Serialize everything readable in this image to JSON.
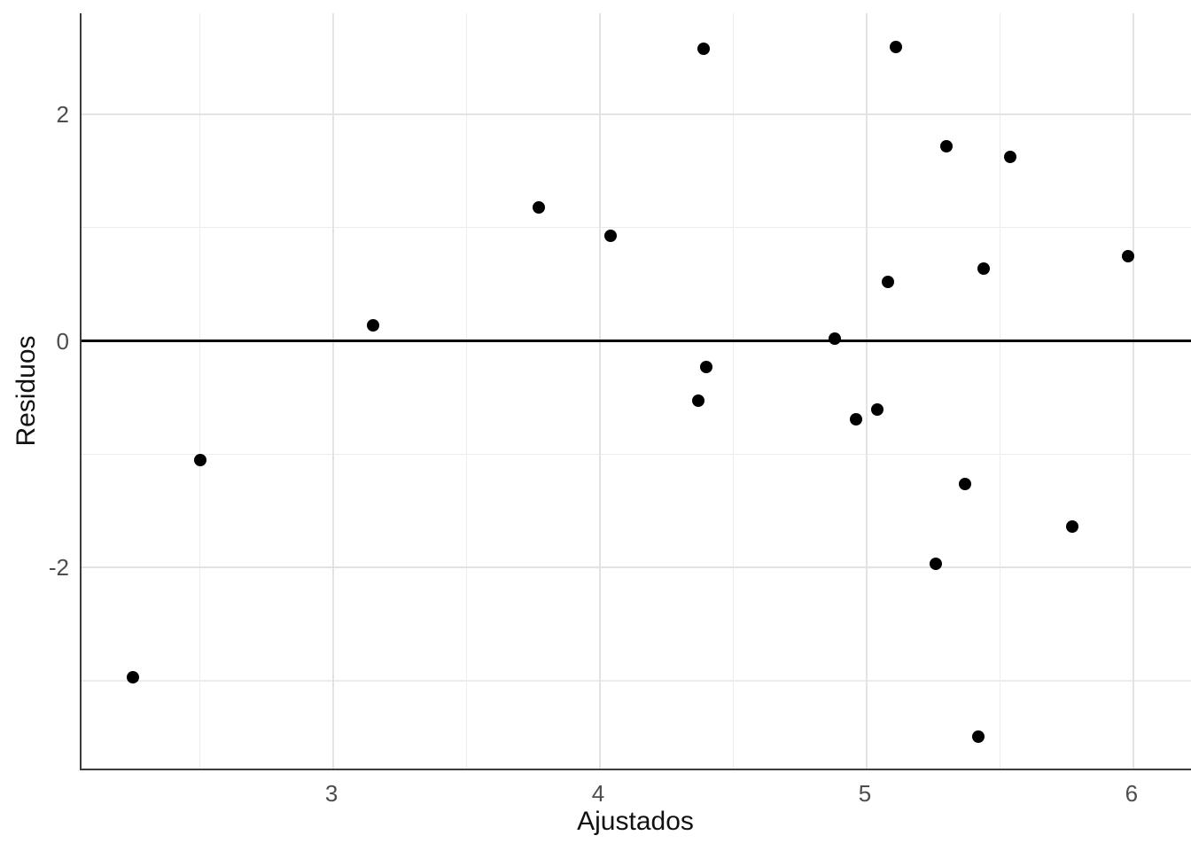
{
  "chart_data": {
    "type": "scatter",
    "title": "",
    "xlabel": "Ajustados",
    "ylabel": "Residuos",
    "xlim": [
      2.056,
      6.223
    ],
    "ylim": [
      -3.775,
      2.891
    ],
    "x_ticks": [
      {
        "value": 3,
        "label": "3"
      },
      {
        "value": 4,
        "label": "4"
      },
      {
        "value": 5,
        "label": "5"
      },
      {
        "value": 6,
        "label": "6"
      }
    ],
    "y_ticks": [
      {
        "value": -2,
        "label": "-2"
      },
      {
        "value": 0,
        "label": "0"
      },
      {
        "value": 2,
        "label": "2"
      }
    ],
    "x_minor_gridlines": [
      2.5,
      3.5,
      4.5,
      5.5
    ],
    "y_minor_gridlines": [
      -3,
      -1,
      1
    ],
    "grid": "on",
    "legend": "none",
    "reference_hline": 0,
    "points": [
      {
        "x": 2.25,
        "y": -2.97
      },
      {
        "x": 2.5,
        "y": -1.05
      },
      {
        "x": 3.15,
        "y": 0.14
      },
      {
        "x": 3.77,
        "y": 1.18
      },
      {
        "x": 4.04,
        "y": 0.93
      },
      {
        "x": 4.37,
        "y": -0.53
      },
      {
        "x": 4.39,
        "y": 2.58
      },
      {
        "x": 4.4,
        "y": -0.23
      },
      {
        "x": 4.88,
        "y": 0.02
      },
      {
        "x": 4.96,
        "y": -0.69
      },
      {
        "x": 5.04,
        "y": -0.61
      },
      {
        "x": 5.08,
        "y": 0.52
      },
      {
        "x": 5.11,
        "y": 2.59
      },
      {
        "x": 5.26,
        "y": -1.97
      },
      {
        "x": 5.3,
        "y": 1.72
      },
      {
        "x": 5.37,
        "y": -1.26
      },
      {
        "x": 5.42,
        "y": -3.49
      },
      {
        "x": 5.44,
        "y": 0.64
      },
      {
        "x": 5.54,
        "y": 1.62
      },
      {
        "x": 5.77,
        "y": -1.64
      },
      {
        "x": 5.98,
        "y": 0.75
      }
    ],
    "colors": {
      "point": "#000000",
      "grid_major": "#e3e3e3",
      "grid_minor": "#ececec",
      "axis_line": "#3c3c3c",
      "zero_line": "#000000",
      "tick_text": "#4d4d4d",
      "title_text": "#111111",
      "background": "#ffffff"
    }
  }
}
